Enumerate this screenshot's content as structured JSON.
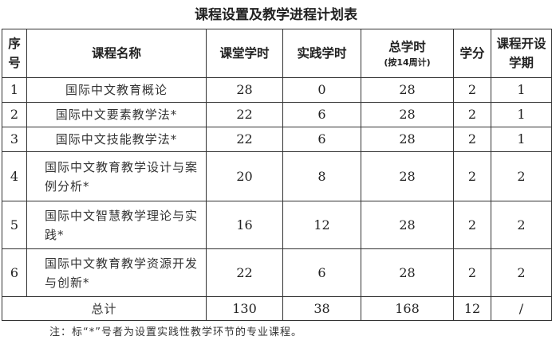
{
  "title": "课程设置及教学进程计划表",
  "headers": {
    "seq": "序号",
    "name": "课程名称",
    "classroom": "课堂学时",
    "practice": "实践学时",
    "total": "总学时",
    "total_note": "(按14周计)",
    "credit": "学分",
    "semester": "课程开设学期"
  },
  "rows": [
    {
      "seq": "1",
      "name": "国际中文教育概论",
      "classroom": "28",
      "practice": "0",
      "total": "28",
      "credit": "2",
      "semester": "1"
    },
    {
      "seq": "2",
      "name": "国际中文要素教学法*",
      "classroom": "22",
      "practice": "6",
      "total": "28",
      "credit": "2",
      "semester": "1"
    },
    {
      "seq": "3",
      "name": "国际中文技能教学法*",
      "classroom": "22",
      "practice": "6",
      "total": "28",
      "credit": "2",
      "semester": "1"
    },
    {
      "seq": "4",
      "name": "国际中文教育教学设计与案例分析*",
      "classroom": "20",
      "practice": "8",
      "total": "28",
      "credit": "2",
      "semester": "2"
    },
    {
      "seq": "5",
      "name": "国际中文智慧教学理论与实践*",
      "classroom": "16",
      "practice": "12",
      "total": "28",
      "credit": "2",
      "semester": "2"
    },
    {
      "seq": "6",
      "name": "国际中文教育教学资源开发与创新*",
      "classroom": "22",
      "practice": "6",
      "total": "28",
      "credit": "2",
      "semester": "2"
    }
  ],
  "totals": {
    "label": "总计",
    "classroom": "130",
    "practice": "38",
    "total": "168",
    "credit": "12",
    "semester": "/"
  },
  "note": "注：标“*”号者为设置实践性教学环节的专业课程。"
}
